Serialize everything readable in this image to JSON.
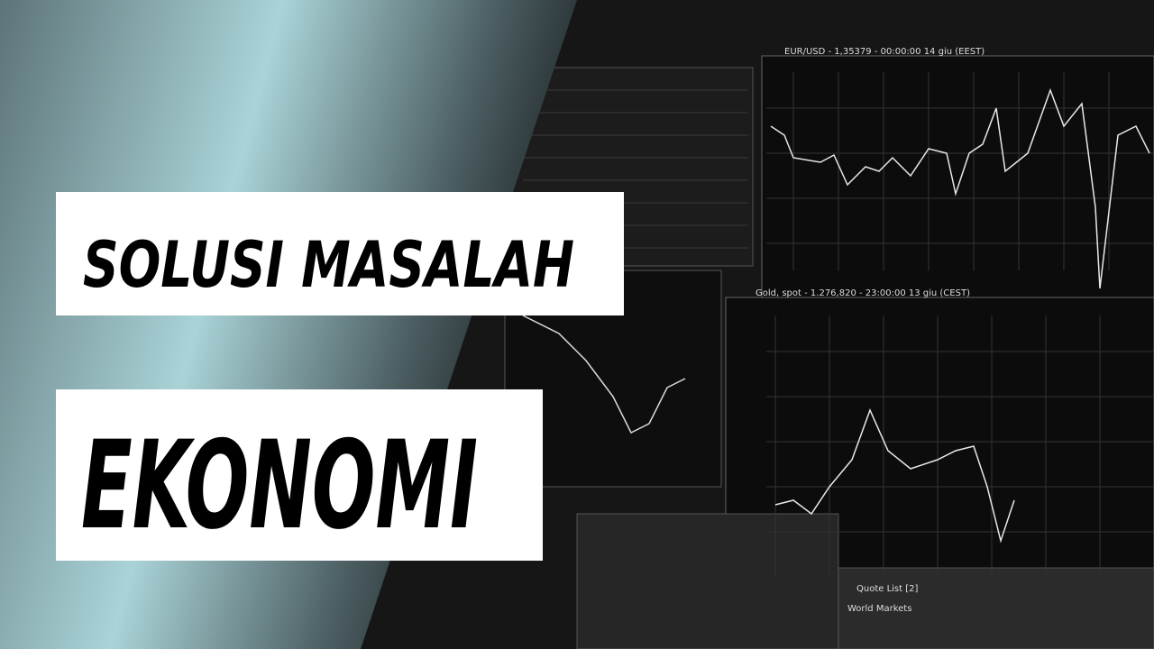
{
  "headline": {
    "line1": "SOLUSI MASALAH",
    "line2": "EKONOMI"
  },
  "screen": {
    "chart1_title": "EUR/USD - 1,35379 - 00:00:00 14 giu (EEST)",
    "chart2_title": "Gold, spot - 1.276,820 - 23:00:00 13 giu (CEST)",
    "quote_list": "Quote List [2]",
    "world_markets": "World Markets"
  }
}
